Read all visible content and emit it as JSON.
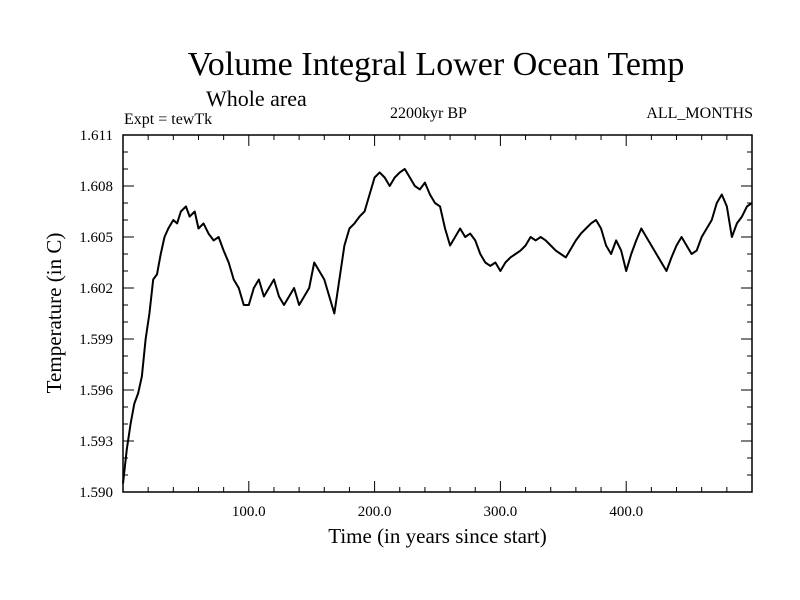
{
  "chart_data": {
    "type": "line",
    "title": "Volume Integral Lower Ocean Temp",
    "subtitle": "Whole area",
    "left_label": "Expt = tewTk",
    "center_label": "2200kyr BP",
    "right_label": "ALL_MONTHS",
    "xlabel": "Time (in years since start)",
    "ylabel": "Temperature (in C)",
    "xlim": [
      0,
      500
    ],
    "ylim": [
      1.59,
      1.611
    ],
    "x_ticks": [
      100,
      200,
      300,
      400
    ],
    "x_tick_labels": [
      "100.0",
      "200.0",
      "300.0",
      "400.0"
    ],
    "y_ticks": [
      1.59,
      1.593,
      1.596,
      1.599,
      1.602,
      1.605,
      1.608,
      1.611
    ],
    "y_tick_labels": [
      "1.590",
      "1.593",
      "1.596",
      "1.599",
      "1.602",
      "1.605",
      "1.608",
      "1.611"
    ],
    "series": [
      {
        "name": "Volume integral lower ocean temperature",
        "x": [
          0,
          3,
          6,
          9,
          12,
          15,
          18,
          21,
          24,
          27,
          30,
          33,
          36,
          40,
          43,
          46,
          50,
          53,
          57,
          60,
          64,
          68,
          72,
          76,
          80,
          84,
          88,
          92,
          96,
          100,
          104,
          108,
          112,
          116,
          120,
          124,
          128,
          132,
          136,
          140,
          144,
          148,
          152,
          156,
          160,
          164,
          168,
          170,
          173,
          176,
          180,
          184,
          188,
          192,
          196,
          200,
          204,
          208,
          212,
          216,
          220,
          224,
          228,
          232,
          236,
          240,
          244,
          248,
          252,
          256,
          260,
          264,
          268,
          272,
          276,
          280,
          284,
          288,
          292,
          296,
          300,
          304,
          308,
          312,
          316,
          320,
          324,
          328,
          332,
          336,
          340,
          344,
          348,
          352,
          356,
          360,
          364,
          368,
          372,
          376,
          380,
          384,
          388,
          392,
          396,
          400,
          404,
          408,
          412,
          416,
          420,
          424,
          428,
          432,
          436,
          440,
          444,
          448,
          452,
          456,
          460,
          464,
          468,
          472,
          476,
          480,
          484,
          488,
          492,
          496,
          500
        ],
        "values": [
          1.5905,
          1.5925,
          1.594,
          1.5952,
          1.5958,
          1.5968,
          1.599,
          1.6005,
          1.6025,
          1.6028,
          1.604,
          1.605,
          1.6055,
          1.606,
          1.6058,
          1.6065,
          1.6068,
          1.6062,
          1.6065,
          1.6055,
          1.6058,
          1.6052,
          1.6048,
          1.605,
          1.6042,
          1.6035,
          1.6025,
          1.602,
          1.601,
          1.601,
          1.602,
          1.6025,
          1.6015,
          1.602,
          1.6025,
          1.6015,
          1.601,
          1.6015,
          1.602,
          1.601,
          1.6015,
          1.602,
          1.6035,
          1.603,
          1.6025,
          1.6015,
          1.6005,
          1.6015,
          1.603,
          1.6045,
          1.6055,
          1.6058,
          1.6062,
          1.6065,
          1.6075,
          1.6085,
          1.6088,
          1.6085,
          1.608,
          1.6085,
          1.6088,
          1.609,
          1.6085,
          1.608,
          1.6078,
          1.6082,
          1.6075,
          1.607,
          1.6068,
          1.6055,
          1.6045,
          1.605,
          1.6055,
          1.605,
          1.6052,
          1.6048,
          1.604,
          1.6035,
          1.6033,
          1.6035,
          1.603,
          1.6035,
          1.6038,
          1.604,
          1.6042,
          1.6045,
          1.605,
          1.6048,
          1.605,
          1.6048,
          1.6045,
          1.6042,
          1.604,
          1.6038,
          1.6043,
          1.6048,
          1.6052,
          1.6055,
          1.6058,
          1.606,
          1.6055,
          1.6045,
          1.604,
          1.6048,
          1.6042,
          1.603,
          1.604,
          1.6048,
          1.6055,
          1.605,
          1.6045,
          1.604,
          1.6035,
          1.603,
          1.6038,
          1.6045,
          1.605,
          1.6045,
          1.604,
          1.6042,
          1.605,
          1.6055,
          1.606,
          1.607,
          1.6075,
          1.6068,
          1.605,
          1.6058,
          1.6062,
          1.6068,
          1.607
        ]
      }
    ]
  }
}
